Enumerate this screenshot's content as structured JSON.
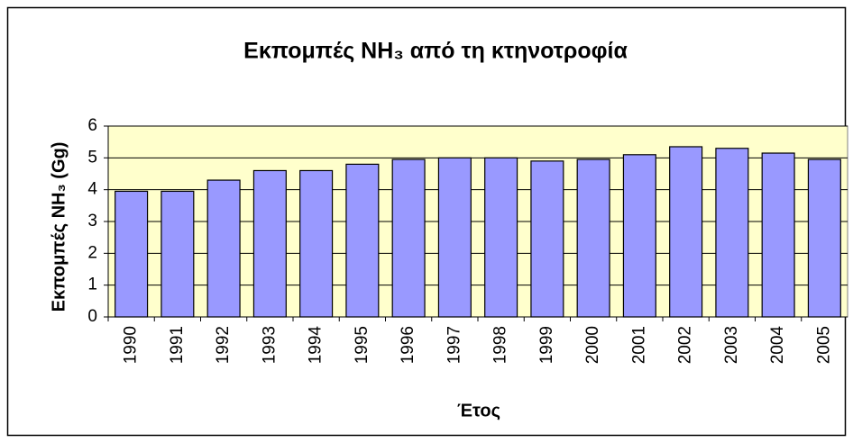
{
  "chart_data": {
    "type": "bar",
    "title": "Εκπομπές NH₃ από τη κτηνοτροφία",
    "x_label": "Έτος",
    "y_label": "Εκπομπές NH₃ (Gg)",
    "categories": [
      "1990",
      "1991",
      "1992",
      "1993",
      "1994",
      "1995",
      "1996",
      "1997",
      "1998",
      "1999",
      "2000",
      "2001",
      "2002",
      "2003",
      "2004",
      "2005"
    ],
    "values": [
      3.95,
      3.95,
      4.3,
      4.6,
      4.6,
      4.8,
      4.95,
      5.0,
      5.0,
      4.9,
      4.95,
      5.1,
      5.35,
      5.3,
      5.15,
      4.95
    ],
    "color": "#9999ff",
    "ylim": [
      0,
      6
    ],
    "yticks": [
      0,
      1,
      2,
      3,
      4,
      5,
      6
    ],
    "grid": true
  }
}
